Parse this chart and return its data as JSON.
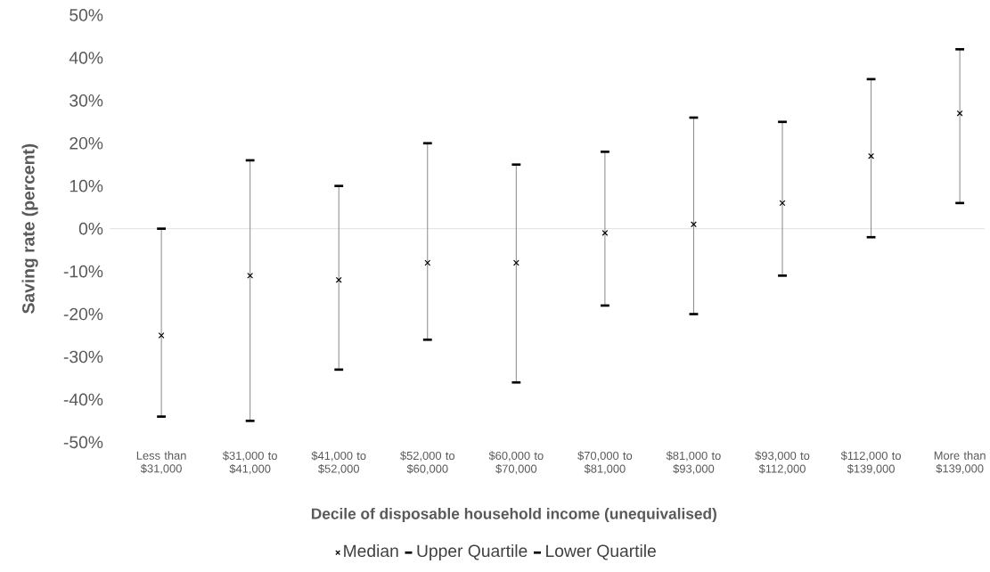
{
  "chart_data": {
    "type": "scatter",
    "xlabel": "Decile of disposable household income (unequivalised)",
    "ylabel": "Saving rate (percent)",
    "categories": [
      "Less than $31,000",
      "$31,000 to $41,000",
      "$41,000 to $52,000",
      "$52,000 to $60,000",
      "$60,000 to $70,000",
      "$70,000 to $81,000",
      "$81,000 to $93,000",
      "$93,000 to $112,000",
      "$112,000 to $139,000",
      "More than $139,000"
    ],
    "series": [
      {
        "name": "Median",
        "color": "#000000",
        "marker": "cross",
        "values": [
          -25,
          -11,
          -12,
          -8,
          -8,
          -1,
          1,
          6,
          17,
          27
        ],
        "errors": [
          [
            -44,
            0
          ],
          [
            -45,
            16
          ],
          [
            -33,
            10
          ],
          [
            -26,
            20
          ],
          [
            -36,
            15
          ],
          [
            -18,
            18
          ],
          [
            -20,
            26
          ],
          [
            -11,
            25
          ],
          [
            -2,
            35
          ],
          [
            6,
            42
          ]
        ]
      }
    ],
    "annotations": [
      "Upper Quartile",
      "Lower Quartile"
    ],
    "ylim": [
      -50,
      50
    ],
    "yticks": [
      {
        "value": -50,
        "label": "-50%"
      },
      {
        "value": -40,
        "label": "-40%"
      },
      {
        "value": -30,
        "label": "-30%"
      },
      {
        "value": -20,
        "label": "-20%"
      },
      {
        "value": -10,
        "label": "-10%"
      },
      {
        "value": 0,
        "label": "0%"
      },
      {
        "value": 10,
        "label": "10%"
      },
      {
        "value": 20,
        "label": "20%"
      },
      {
        "value": 30,
        "label": "30%"
      },
      {
        "value": 40,
        "label": "40%"
      },
      {
        "value": 50,
        "label": "50%"
      }
    ],
    "ref_lines": [
      {
        "axis": "y",
        "value": 0,
        "color": "#d9d9d9"
      }
    ],
    "legend": "bottom"
  }
}
